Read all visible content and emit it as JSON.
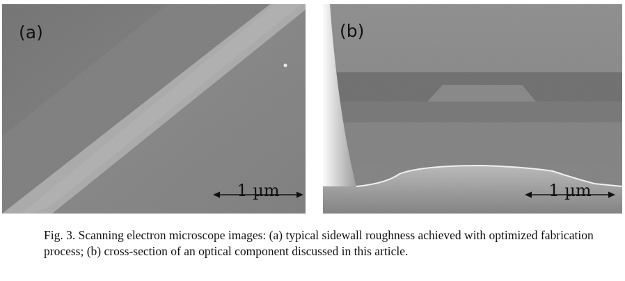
{
  "figure": {
    "panels": [
      {
        "label": "(a)",
        "scale_label": "1 µm"
      },
      {
        "label": "(b)",
        "scale_label": "1 µm"
      }
    ],
    "caption": "Fig. 3. Scanning electron microscope images: (a) typical sidewall roughness achieved with optimized fabrication process; (b) cross-section of an optical component discussed in this article."
  }
}
